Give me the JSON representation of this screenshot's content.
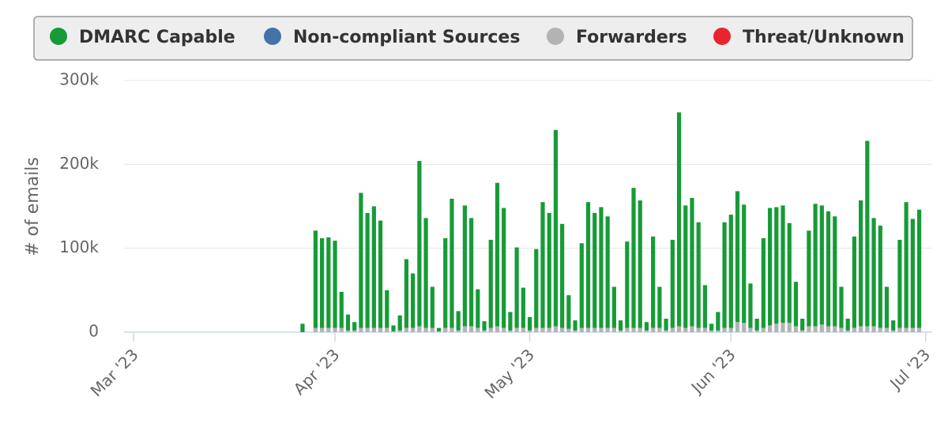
{
  "chart_data": {
    "type": "bar",
    "stacked": true,
    "y_label": "# of emails",
    "x": [
      26,
      27,
      28,
      29,
      30,
      31,
      32,
      33,
      34,
      35,
      36,
      37,
      38,
      39,
      40,
      41,
      42,
      43,
      44,
      45,
      46,
      47,
      48,
      49,
      50,
      51,
      52,
      53,
      54,
      55,
      56,
      57,
      58,
      59,
      60,
      61,
      62,
      63,
      64,
      65,
      66,
      67,
      68,
      69,
      70,
      71,
      72,
      73,
      74,
      75,
      76,
      77,
      78,
      79,
      80,
      81,
      82,
      83,
      84,
      85,
      86,
      87,
      88,
      89,
      90,
      91,
      92,
      93,
      94,
      95,
      96,
      97,
      98,
      99,
      100,
      101,
      102,
      103,
      104,
      105,
      106,
      107,
      108,
      109,
      110,
      111,
      112,
      113,
      114,
      115,
      116,
      117,
      118,
      119,
      120,
      121
    ],
    "xlim": [
      -1.5,
      123
    ],
    "xticks": [
      {
        "value": 0,
        "label": "Mar '23"
      },
      {
        "value": 31,
        "label": "Apr '23"
      },
      {
        "value": 61,
        "label": "May '23"
      },
      {
        "value": 92,
        "label": "Jun '23"
      },
      {
        "value": 122,
        "label": "Jul '23"
      }
    ],
    "ylim": [
      0,
      300000
    ],
    "yticks": [
      {
        "value": 0,
        "label": "0"
      },
      {
        "value": 100000,
        "label": "100k"
      },
      {
        "value": 200000,
        "label": "200k"
      },
      {
        "value": 300000,
        "label": "300k"
      }
    ],
    "grid": true,
    "series": [
      {
        "name": "DMARC Capable",
        "color": "#169b37",
        "values": [
          10000,
          null,
          116000,
          107000,
          108000,
          104000,
          43000,
          19000,
          10000,
          161000,
          137000,
          145000,
          128000,
          45000,
          7000,
          18000,
          82000,
          65000,
          197000,
          131000,
          49000,
          4000,
          107000,
          154000,
          23000,
          144000,
          129000,
          46000,
          11000,
          105000,
          171000,
          143000,
          22000,
          96000,
          48000,
          16000,
          94000,
          150000,
          137000,
          234000,
          124000,
          40000,
          12000,
          101000,
          150000,
          137000,
          144000,
          133000,
          49000,
          12000,
          103000,
          167000,
          152000,
          10000,
          109000,
          49000,
          14000,
          105000,
          255000,
          146000,
          153000,
          126000,
          51000,
          8000,
          22000,
          126000,
          135000,
          156000,
          141000,
          53000,
          14000,
          107000,
          140000,
          139000,
          140000,
          119000,
          53000,
          14000,
          114000,
          146000,
          142000,
          137000,
          131000,
          49000,
          14000,
          109000,
          150000,
          221000,
          129000,
          122000,
          49000,
          12000,
          105000,
          150000,
          130000,
          141000
        ]
      },
      {
        "name": "Non-compliant Sources",
        "color": "#4572a7",
        "values": [
          0,
          null,
          0,
          0,
          0,
          0,
          0,
          0,
          0,
          0,
          0,
          0,
          0,
          0,
          0,
          0,
          0,
          0,
          0,
          0,
          0,
          0,
          0,
          0,
          0,
          0,
          0,
          0,
          0,
          0,
          0,
          0,
          0,
          0,
          0,
          0,
          0,
          0,
          0,
          0,
          0,
          0,
          0,
          0,
          0,
          0,
          0,
          0,
          0,
          0,
          0,
          0,
          0,
          0,
          0,
          0,
          0,
          0,
          0,
          0,
          0,
          0,
          0,
          0,
          0,
          0,
          0,
          0,
          0,
          0,
          0,
          0,
          0,
          0,
          0,
          0,
          0,
          0,
          0,
          0,
          0,
          0,
          0,
          0,
          0,
          0,
          0,
          0,
          0,
          0,
          0,
          0,
          0,
          0,
          0,
          0
        ]
      },
      {
        "name": "Forwarders",
        "color": "#b3b3b3",
        "values": [
          0,
          null,
          5000,
          5000,
          5000,
          5000,
          5000,
          2000,
          2000,
          5000,
          5000,
          5000,
          5000,
          5000,
          1000,
          2000,
          5000,
          5000,
          7000,
          5000,
          5000,
          1000,
          5000,
          5000,
          2000,
          7000,
          7000,
          5000,
          2000,
          5000,
          7000,
          5000,
          2000,
          5000,
          5000,
          2000,
          5000,
          5000,
          5000,
          7000,
          5000,
          4000,
          2000,
          5000,
          5000,
          5000,
          5000,
          5000,
          5000,
          2000,
          5000,
          5000,
          5000,
          2000,
          5000,
          5000,
          2000,
          5000,
          7000,
          5000,
          7000,
          5000,
          5000,
          2000,
          2000,
          5000,
          5000,
          12000,
          11000,
          5000,
          2000,
          5000,
          8000,
          10000,
          11000,
          11000,
          7000,
          2000,
          7000,
          7000,
          9000,
          7000,
          7000,
          5000,
          2000,
          5000,
          7000,
          7000,
          7000,
          5000,
          5000,
          2000,
          5000,
          5000,
          5000,
          5000
        ]
      },
      {
        "name": "Threat/Unknown",
        "color": "#e8252d",
        "values": [
          0,
          null,
          0,
          0,
          0,
          0,
          0,
          0,
          0,
          0,
          0,
          0,
          0,
          0,
          0,
          0,
          0,
          0,
          0,
          0,
          0,
          0,
          0,
          0,
          0,
          0,
          0,
          0,
          0,
          0,
          0,
          0,
          0,
          0,
          0,
          0,
          0,
          0,
          0,
          0,
          0,
          0,
          0,
          0,
          0,
          0,
          0,
          0,
          0,
          0,
          0,
          0,
          0,
          0,
          0,
          0,
          0,
          0,
          0,
          0,
          0,
          0,
          0,
          0,
          0,
          0,
          0,
          0,
          0,
          0,
          0,
          0,
          0,
          0,
          0,
          0,
          0,
          0,
          0,
          0,
          0,
          0,
          0,
          0,
          0,
          0,
          0,
          0,
          0,
          0,
          0,
          0,
          0,
          0,
          0,
          0
        ]
      }
    ]
  }
}
